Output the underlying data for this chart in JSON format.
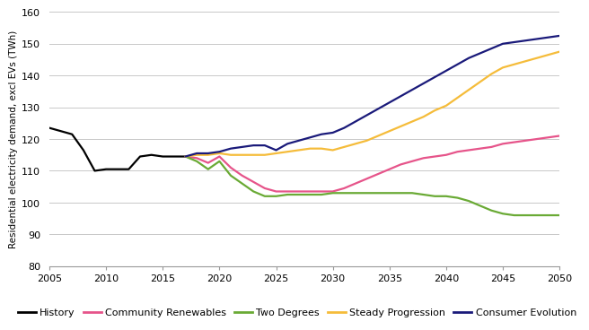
{
  "title": "",
  "ylabel": "Residential electricity demand, excl EVs (TWh)",
  "ylim": [
    80,
    160
  ],
  "yticks": [
    80,
    90,
    100,
    110,
    120,
    130,
    140,
    150,
    160
  ],
  "xlim": [
    2005,
    2050
  ],
  "xticks": [
    2005,
    2010,
    2015,
    2020,
    2025,
    2030,
    2035,
    2040,
    2045,
    2050
  ],
  "background_color": "#ffffff",
  "grid_color": "#c8c8c8",
  "series": {
    "History": {
      "color": "#000000",
      "linewidth": 1.6,
      "x": [
        2005,
        2006,
        2007,
        2008,
        2009,
        2010,
        2011,
        2012,
        2013,
        2014,
        2015,
        2016,
        2017
      ],
      "y": [
        123.5,
        122.5,
        121.5,
        116.5,
        110.0,
        110.5,
        110.5,
        110.5,
        114.5,
        115.0,
        114.5,
        114.5,
        114.5
      ]
    },
    "Community Renewables": {
      "color": "#e6548a",
      "linewidth": 1.6,
      "x": [
        2017,
        2018,
        2019,
        2020,
        2021,
        2022,
        2023,
        2024,
        2025,
        2026,
        2027,
        2028,
        2029,
        2030,
        2031,
        2032,
        2033,
        2034,
        2035,
        2036,
        2037,
        2038,
        2039,
        2040,
        2041,
        2042,
        2043,
        2044,
        2045,
        2046,
        2047,
        2048,
        2049,
        2050
      ],
      "y": [
        114.5,
        114.0,
        112.5,
        114.5,
        111.0,
        108.5,
        106.5,
        104.5,
        103.5,
        103.5,
        103.5,
        103.5,
        103.5,
        103.5,
        104.5,
        106.0,
        107.5,
        109.0,
        110.5,
        112.0,
        113.0,
        114.0,
        114.5,
        115.0,
        116.0,
        116.5,
        117.0,
        117.5,
        118.5,
        119.0,
        119.5,
        120.0,
        120.5,
        121.0
      ]
    },
    "Two Degrees": {
      "color": "#6aaa35",
      "linewidth": 1.6,
      "x": [
        2017,
        2018,
        2019,
        2020,
        2021,
        2022,
        2023,
        2024,
        2025,
        2026,
        2027,
        2028,
        2029,
        2030,
        2031,
        2032,
        2033,
        2034,
        2035,
        2036,
        2037,
        2038,
        2039,
        2040,
        2041,
        2042,
        2043,
        2044,
        2045,
        2046,
        2047,
        2048,
        2049,
        2050
      ],
      "y": [
        114.5,
        113.0,
        110.5,
        113.0,
        108.5,
        106.0,
        103.5,
        102.0,
        102.0,
        102.5,
        102.5,
        102.5,
        102.5,
        103.0,
        103.0,
        103.0,
        103.0,
        103.0,
        103.0,
        103.0,
        103.0,
        102.5,
        102.0,
        102.0,
        101.5,
        100.5,
        99.0,
        97.5,
        96.5,
        96.0,
        96.0,
        96.0,
        96.0,
        96.0
      ]
    },
    "Steady Progression": {
      "color": "#f5bc3a",
      "linewidth": 1.6,
      "x": [
        2017,
        2018,
        2019,
        2020,
        2021,
        2022,
        2023,
        2024,
        2025,
        2026,
        2027,
        2028,
        2029,
        2030,
        2031,
        2032,
        2033,
        2034,
        2035,
        2036,
        2037,
        2038,
        2039,
        2040,
        2041,
        2042,
        2043,
        2044,
        2045,
        2046,
        2047,
        2048,
        2049,
        2050
      ],
      "y": [
        114.5,
        115.0,
        115.0,
        115.5,
        115.0,
        115.0,
        115.0,
        115.0,
        115.5,
        116.0,
        116.5,
        117.0,
        117.0,
        116.5,
        117.5,
        118.5,
        119.5,
        121.0,
        122.5,
        124.0,
        125.5,
        127.0,
        129.0,
        130.5,
        133.0,
        135.5,
        138.0,
        140.5,
        142.5,
        143.5,
        144.5,
        145.5,
        146.5,
        147.5
      ]
    },
    "Consumer Evolution": {
      "color": "#1a1a7a",
      "linewidth": 1.6,
      "x": [
        2017,
        2018,
        2019,
        2020,
        2021,
        2022,
        2023,
        2024,
        2025,
        2026,
        2027,
        2028,
        2029,
        2030,
        2031,
        2032,
        2033,
        2034,
        2035,
        2036,
        2037,
        2038,
        2039,
        2040,
        2041,
        2042,
        2043,
        2044,
        2045,
        2046,
        2047,
        2048,
        2049,
        2050
      ],
      "y": [
        114.5,
        115.5,
        115.5,
        116.0,
        117.0,
        117.5,
        118.0,
        118.0,
        116.5,
        118.5,
        119.5,
        120.5,
        121.5,
        122.0,
        123.5,
        125.5,
        127.5,
        129.5,
        131.5,
        133.5,
        135.5,
        137.5,
        139.5,
        141.5,
        143.5,
        145.5,
        147.0,
        148.5,
        150.0,
        150.5,
        151.0,
        151.5,
        152.0,
        152.5
      ]
    }
  },
  "legend": {
    "labels": [
      "History",
      "Community Renewables",
      "Two Degrees",
      "Steady Progression",
      "Consumer Evolution"
    ],
    "colors": [
      "#000000",
      "#e6548a",
      "#6aaa35",
      "#f5bc3a",
      "#1a1a7a"
    ],
    "fontsize": 8.0
  }
}
